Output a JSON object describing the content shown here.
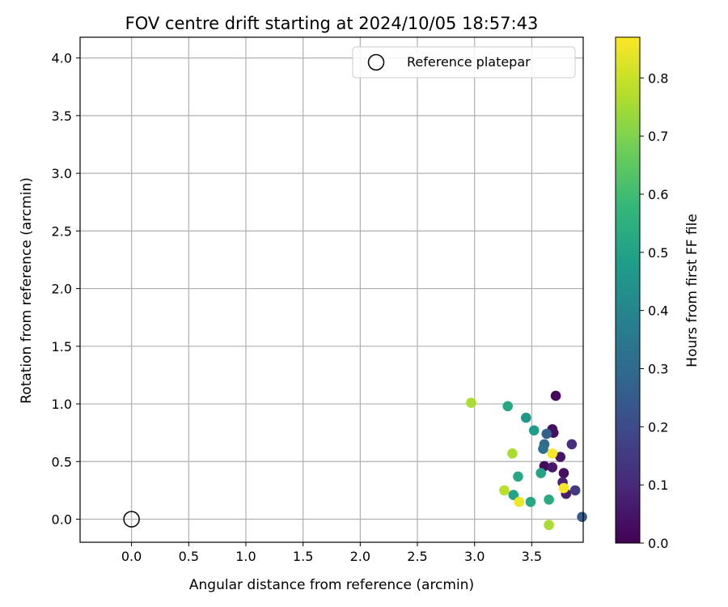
{
  "chart_data": {
    "type": "scatter",
    "title": "FOV centre drift starting at 2024/10/05 18:57:43",
    "xlabel": "Angular distance from reference (arcmin)",
    "ylabel": "Rotation from reference (arcmin)",
    "xlim": [
      -0.45,
      3.95
    ],
    "ylim": [
      -0.2,
      4.18
    ],
    "x_ticks": [
      0.0,
      0.5,
      1.0,
      1.5,
      2.0,
      2.5,
      3.0,
      3.5
    ],
    "x_tick_labels": [
      "0.0",
      "0.5",
      "1.0",
      "1.5",
      "2.0",
      "2.5",
      "3.0",
      "3.5"
    ],
    "y_ticks": [
      0.0,
      0.5,
      1.0,
      1.5,
      2.0,
      2.5,
      3.0,
      3.5,
      4.0
    ],
    "y_tick_labels": [
      "0.0",
      "0.5",
      "1.0",
      "1.5",
      "2.0",
      "2.5",
      "3.0",
      "3.5",
      "4.0"
    ],
    "grid": true,
    "legend": {
      "placement": "top-right",
      "entries": [
        {
          "label": "Reference platepar",
          "marker": "open-circle"
        }
      ]
    },
    "reference_point": {
      "x": 0.0,
      "y": 0.0
    },
    "colorbar": {
      "label": "Hours from first FF file",
      "range": [
        0.0,
        0.87
      ],
      "ticks": [
        0.0,
        0.1,
        0.2,
        0.3,
        0.4,
        0.5,
        0.6,
        0.7,
        0.8
      ],
      "tick_labels": [
        "0.0",
        "0.1",
        "0.2",
        "0.3",
        "0.4",
        "0.5",
        "0.6",
        "0.7",
        "0.8"
      ],
      "colormap": "viridis"
    },
    "colormap_stops": [
      "#440154",
      "#482878",
      "#3e4989",
      "#31688e",
      "#26828e",
      "#1f9e89",
      "#35b779",
      "#6ece58",
      "#b5de2b",
      "#fde725"
    ],
    "points": [
      {
        "x": 3.71,
        "y": 1.07,
        "hours": 0.02
      },
      {
        "x": 3.68,
        "y": 0.78,
        "hours": 0.03
      },
      {
        "x": 3.69,
        "y": 0.75,
        "hours": 0.04
      },
      {
        "x": 3.75,
        "y": 0.54,
        "hours": 0.05
      },
      {
        "x": 3.61,
        "y": 0.46,
        "hours": 0.02
      },
      {
        "x": 3.68,
        "y": 0.45,
        "hours": 0.06
      },
      {
        "x": 3.78,
        "y": 0.4,
        "hours": 0.03
      },
      {
        "x": 3.77,
        "y": 0.32,
        "hours": 0.08
      },
      {
        "x": 3.8,
        "y": 0.22,
        "hours": 0.07
      },
      {
        "x": 3.85,
        "y": 0.65,
        "hours": 0.12
      },
      {
        "x": 3.88,
        "y": 0.25,
        "hours": 0.15
      },
      {
        "x": 3.94,
        "y": 0.02,
        "hours": 0.25
      },
      {
        "x": 3.63,
        "y": 0.74,
        "hours": 0.27
      },
      {
        "x": 3.61,
        "y": 0.65,
        "hours": 0.3
      },
      {
        "x": 3.6,
        "y": 0.61,
        "hours": 0.32
      },
      {
        "x": 3.45,
        "y": 0.88,
        "hours": 0.46
      },
      {
        "x": 3.52,
        "y": 0.77,
        "hours": 0.48
      },
      {
        "x": 3.29,
        "y": 0.98,
        "hours": 0.52
      },
      {
        "x": 3.58,
        "y": 0.4,
        "hours": 0.5
      },
      {
        "x": 3.38,
        "y": 0.37,
        "hours": 0.52
      },
      {
        "x": 3.34,
        "y": 0.21,
        "hours": 0.5
      },
      {
        "x": 3.49,
        "y": 0.15,
        "hours": 0.52
      },
      {
        "x": 3.65,
        "y": 0.17,
        "hours": 0.53
      },
      {
        "x": 2.97,
        "y": 1.01,
        "hours": 0.76
      },
      {
        "x": 3.33,
        "y": 0.57,
        "hours": 0.76
      },
      {
        "x": 3.26,
        "y": 0.25,
        "hours": 0.78
      },
      {
        "x": 3.65,
        "y": -0.05,
        "hours": 0.76
      },
      {
        "x": 3.39,
        "y": 0.15,
        "hours": 0.85
      },
      {
        "x": 3.68,
        "y": 0.57,
        "hours": 0.86
      },
      {
        "x": 3.78,
        "y": 0.27,
        "hours": 0.86
      }
    ]
  }
}
